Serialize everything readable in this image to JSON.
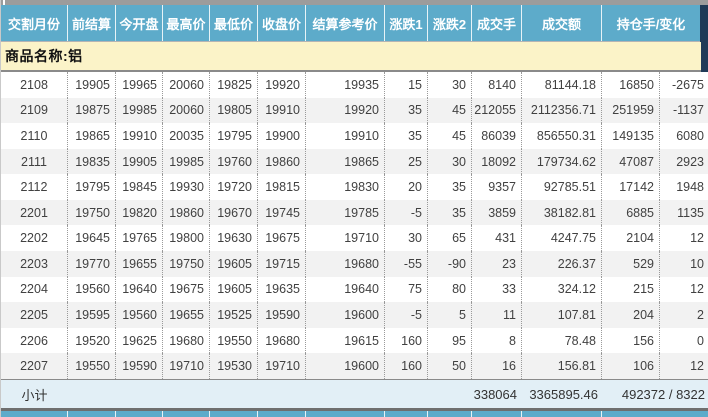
{
  "header": {
    "columns": [
      "交割月份",
      "前结算",
      "今开盘",
      "最高价",
      "最低价",
      "收盘价",
      "结算参考价",
      "涨跌1",
      "涨跌2",
      "成交手",
      "成交额",
      "持仓手/变化"
    ]
  },
  "product": {
    "label": "商品名称:铝"
  },
  "table": {
    "column_keys": [
      "month",
      "prev_settle",
      "open",
      "high",
      "low",
      "close",
      "settle_ref",
      "change1",
      "change2",
      "volume",
      "turnover",
      "open_interest",
      "oi_change"
    ],
    "rows": [
      [
        "2108",
        "19905",
        "19965",
        "20060",
        "19825",
        "19920",
        "19935",
        "15",
        "30",
        "8140",
        "81144.18",
        "16850",
        "-2675"
      ],
      [
        "2109",
        "19875",
        "19985",
        "20060",
        "19805",
        "19910",
        "19920",
        "35",
        "45",
        "212055",
        "2112356.71",
        "251959",
        "-1137"
      ],
      [
        "2110",
        "19865",
        "19910",
        "20035",
        "19795",
        "19900",
        "19910",
        "35",
        "45",
        "86039",
        "856550.31",
        "149135",
        "6080"
      ],
      [
        "2111",
        "19835",
        "19905",
        "19985",
        "19760",
        "19860",
        "19865",
        "25",
        "30",
        "18092",
        "179734.62",
        "47087",
        "2923"
      ],
      [
        "2112",
        "19795",
        "19845",
        "19930",
        "19720",
        "19815",
        "19830",
        "20",
        "35",
        "9357",
        "92785.51",
        "17142",
        "1948"
      ],
      [
        "2201",
        "19750",
        "19820",
        "19860",
        "19670",
        "19745",
        "19785",
        "-5",
        "35",
        "3859",
        "38182.81",
        "6885",
        "1135"
      ],
      [
        "2202",
        "19645",
        "19765",
        "19800",
        "19630",
        "19675",
        "19710",
        "30",
        "65",
        "431",
        "4247.75",
        "2104",
        "12"
      ],
      [
        "2203",
        "19770",
        "19655",
        "19750",
        "19605",
        "19715",
        "19680",
        "-55",
        "-90",
        "23",
        "226.37",
        "529",
        "10"
      ],
      [
        "2204",
        "19560",
        "19640",
        "19675",
        "19605",
        "19635",
        "19640",
        "75",
        "80",
        "33",
        "324.12",
        "215",
        "12"
      ],
      [
        "2205",
        "19595",
        "19560",
        "19655",
        "19525",
        "19590",
        "19600",
        "-5",
        "5",
        "11",
        "107.81",
        "204",
        "2"
      ],
      [
        "2206",
        "19520",
        "19625",
        "19680",
        "19550",
        "19680",
        "19615",
        "160",
        "95",
        "8",
        "78.48",
        "156",
        "0"
      ],
      [
        "2207",
        "19550",
        "19590",
        "19710",
        "19530",
        "19710",
        "19600",
        "160",
        "50",
        "16",
        "156.81",
        "106",
        "12"
      ]
    ],
    "subtotal": {
      "label": "小计",
      "volume": "338064",
      "turnover": "3365895.46",
      "open_interest": "492372 / 8322"
    }
  },
  "colors": {
    "header-bg": "#5dabca",
    "header-text": "#ffffff",
    "corner": "#1f3a57",
    "product-bg": "#fbf3c8",
    "alt-row": "#f2f2f2",
    "subtotal-bg": "#e2eff6",
    "data-text": "#414141",
    "topbar": "#9c9c9c"
  }
}
